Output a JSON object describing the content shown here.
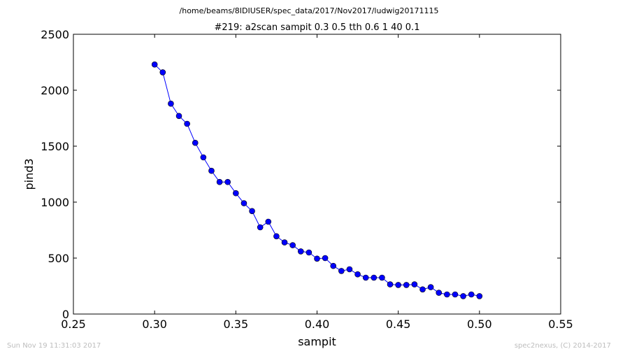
{
  "header": {
    "filepath": "/home/beams/8IDIUSER/spec_data/2017/Nov2017/ludwig20171115"
  },
  "footer": {
    "timestamp": "Sun Nov 19 11:31:03 2017",
    "credit": "spec2nexus, (C) 2014-2017"
  },
  "chart_data": {
    "type": "line",
    "title": "#219: a2scan  sampit 0.3 0.5  tth 0.6 1  40 0.1",
    "xlabel": "sampit",
    "ylabel": "pind3",
    "xlim": [
      0.25,
      0.55
    ],
    "ylim": [
      0,
      2500
    ],
    "xticks": [
      "0.25",
      "0.30",
      "0.35",
      "0.40",
      "0.45",
      "0.50",
      "0.55"
    ],
    "yticks": [
      "0",
      "500",
      "1000",
      "1500",
      "2000",
      "2500"
    ],
    "grid": false,
    "marker": "circle",
    "color": "#0000ff",
    "x": [
      0.3,
      0.305,
      0.31,
      0.315,
      0.32,
      0.325,
      0.33,
      0.335,
      0.34,
      0.345,
      0.35,
      0.355,
      0.36,
      0.365,
      0.37,
      0.375,
      0.38,
      0.385,
      0.39,
      0.395,
      0.4,
      0.405,
      0.41,
      0.415,
      0.42,
      0.425,
      0.43,
      0.435,
      0.44,
      0.445,
      0.45,
      0.455,
      0.46,
      0.465,
      0.47,
      0.475,
      0.48,
      0.485,
      0.49,
      0.495,
      0.5
    ],
    "y": [
      2230,
      2160,
      1880,
      1770,
      1700,
      1530,
      1400,
      1280,
      1180,
      1180,
      1080,
      990,
      920,
      775,
      825,
      695,
      640,
      615,
      560,
      550,
      495,
      500,
      430,
      385,
      400,
      355,
      325,
      325,
      325,
      265,
      260,
      260,
      265,
      220,
      240,
      190,
      175,
      175,
      160,
      175,
      160
    ]
  }
}
